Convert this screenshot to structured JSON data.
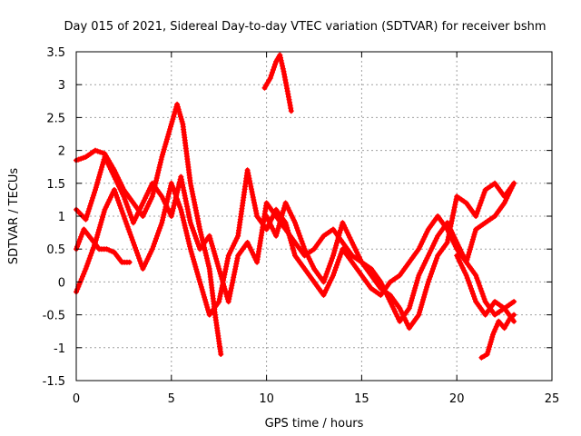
{
  "chart_data": {
    "type": "scatter",
    "title": "Day 015 of 2021, Sidereal Day-to-day VTEC variation (SDTVAR) for receiver bshm",
    "xlabel": "GPS time / hours",
    "ylabel": "SDTVAR / TECUs",
    "xlim": [
      0,
      25
    ],
    "ylim": [
      -1.5,
      3.5
    ],
    "xticks": [
      0,
      5,
      10,
      15,
      20,
      25
    ],
    "yticks": [
      -1.5,
      -1,
      -0.5,
      0,
      0.5,
      1,
      1.5,
      2,
      2.5,
      3,
      3.5
    ],
    "xtick_labels": [
      "0",
      "5",
      "10",
      "15",
      "20",
      "25"
    ],
    "ytick_labels": [
      "-1.5",
      "-1",
      "-0.5",
      "0",
      "0.5",
      "1",
      "1.5",
      "2",
      "2.5",
      "3",
      "3.5"
    ],
    "grid": true,
    "marker": "+",
    "color": "#ff0000",
    "series": [
      {
        "name": "s1",
        "x": [
          0.0,
          0.5,
          1.0,
          1.5,
          2.0,
          2.5,
          3.0,
          3.5,
          4.0,
          4.5,
          5.0,
          5.3,
          5.6,
          6.0,
          6.5,
          7.0,
          7.3,
          7.6
        ],
        "y": [
          1.85,
          1.9,
          2.0,
          1.95,
          1.7,
          1.4,
          1.2,
          1.0,
          1.3,
          1.9,
          2.4,
          2.7,
          2.4,
          1.5,
          0.8,
          0.2,
          -0.5,
          -1.1
        ]
      },
      {
        "name": "s2",
        "x": [
          0.0,
          0.4,
          0.8,
          1.2,
          1.6,
          2.0,
          2.4,
          2.8
        ],
        "y": [
          0.5,
          0.8,
          0.65,
          0.5,
          0.5,
          0.45,
          0.3,
          0.3
        ]
      },
      {
        "name": "s3",
        "x": [
          0.0,
          0.5,
          1.0,
          1.5,
          2.0,
          2.5,
          3.0,
          3.5,
          4.0,
          4.5,
          5.0,
          5.5,
          6.0,
          6.5,
          7.0,
          7.5,
          8.0,
          8.5,
          9.0,
          9.5,
          10.0,
          10.5,
          11.0,
          11.5,
          12.0,
          12.5,
          13.0,
          13.5,
          14.0,
          14.5,
          15.0,
          15.5,
          16.0,
          16.5,
          17.0,
          17.5,
          18.0,
          18.5,
          19.0,
          19.5,
          20.0,
          20.5,
          21.0,
          21.5,
          22.0,
          22.5,
          23.0
        ],
        "y": [
          1.1,
          0.95,
          1.4,
          1.9,
          1.6,
          1.3,
          0.9,
          1.2,
          1.5,
          1.3,
          1.0,
          1.6,
          0.9,
          0.5,
          0.7,
          0.2,
          -0.3,
          0.4,
          0.6,
          0.3,
          1.2,
          1.0,
          0.8,
          0.6,
          0.4,
          0.5,
          0.7,
          0.8,
          0.6,
          0.4,
          0.3,
          0.2,
          0.0,
          -0.3,
          -0.6,
          -0.4,
          0.1,
          0.4,
          0.7,
          0.9,
          0.6,
          0.3,
          0.1,
          -0.3,
          -0.5,
          -0.4,
          -0.3
        ]
      },
      {
        "name": "s4",
        "x": [
          0.0,
          0.5,
          1.0,
          1.5,
          2.0,
          2.5,
          3.0,
          3.5,
          4.0,
          4.5,
          5.0,
          5.5,
          6.0,
          6.5,
          7.0,
          7.5,
          8.0,
          8.5,
          9.0,
          9.5,
          10.0,
          10.5,
          11.0,
          11.5,
          12.0,
          12.5,
          13.0,
          13.5,
          14.0,
          14.5,
          15.0,
          15.5,
          16.0,
          16.5,
          17.0,
          17.5,
          18.0,
          18.5,
          19.0,
          19.5,
          20.0,
          20.5,
          21.0,
          21.5,
          22.0,
          22.5,
          23.0
        ],
        "y": [
          -0.15,
          0.2,
          0.6,
          1.1,
          1.4,
          1.0,
          0.6,
          0.2,
          0.5,
          0.9,
          1.5,
          1.1,
          0.5,
          0.0,
          -0.5,
          -0.3,
          0.4,
          0.7,
          1.7,
          1.0,
          0.8,
          1.1,
          0.9,
          0.4,
          0.2,
          0.0,
          -0.2,
          0.1,
          0.5,
          0.3,
          0.1,
          -0.1,
          -0.2,
          0.0,
          0.1,
          0.3,
          0.5,
          0.8,
          1.0,
          0.8,
          0.5,
          0.3,
          0.8,
          0.9,
          1.0,
          1.2,
          1.5
        ]
      },
      {
        "name": "s5",
        "x": [
          9.9,
          10.2,
          10.5,
          10.7,
          10.9,
          11.1,
          11.3
        ],
        "y": [
          2.95,
          3.1,
          3.35,
          3.45,
          3.2,
          2.9,
          2.6
        ]
      },
      {
        "name": "s6",
        "x": [
          10.0,
          10.5,
          11.0,
          11.5,
          12.0,
          12.5,
          13.0,
          13.5,
          14.0,
          14.5,
          15.0,
          15.5,
          16.0,
          16.5,
          17.0,
          17.5,
          18.0,
          18.5,
          19.0,
          19.5,
          20.0,
          20.5,
          21.0,
          21.5,
          22.0,
          22.5,
          23.0
        ],
        "y": [
          1.0,
          0.7,
          1.2,
          0.9,
          0.5,
          0.2,
          0.0,
          0.4,
          0.9,
          0.6,
          0.3,
          0.1,
          -0.1,
          -0.2,
          -0.4,
          -0.7,
          -0.5,
          0.0,
          0.4,
          0.6,
          1.3,
          1.2,
          1.0,
          1.4,
          1.5,
          1.3,
          1.5
        ]
      },
      {
        "name": "s7",
        "x": [
          21.3,
          21.6,
          21.9,
          22.2,
          22.5,
          22.8,
          23.0
        ],
        "y": [
          -1.15,
          -1.1,
          -0.8,
          -0.6,
          -0.7,
          -0.55,
          -0.5
        ]
      },
      {
        "name": "s8",
        "x": [
          20.0,
          20.5,
          21.0,
          21.5,
          22.0,
          22.5,
          23.0
        ],
        "y": [
          0.4,
          0.1,
          -0.3,
          -0.5,
          -0.3,
          -0.4,
          -0.6
        ]
      }
    ]
  }
}
